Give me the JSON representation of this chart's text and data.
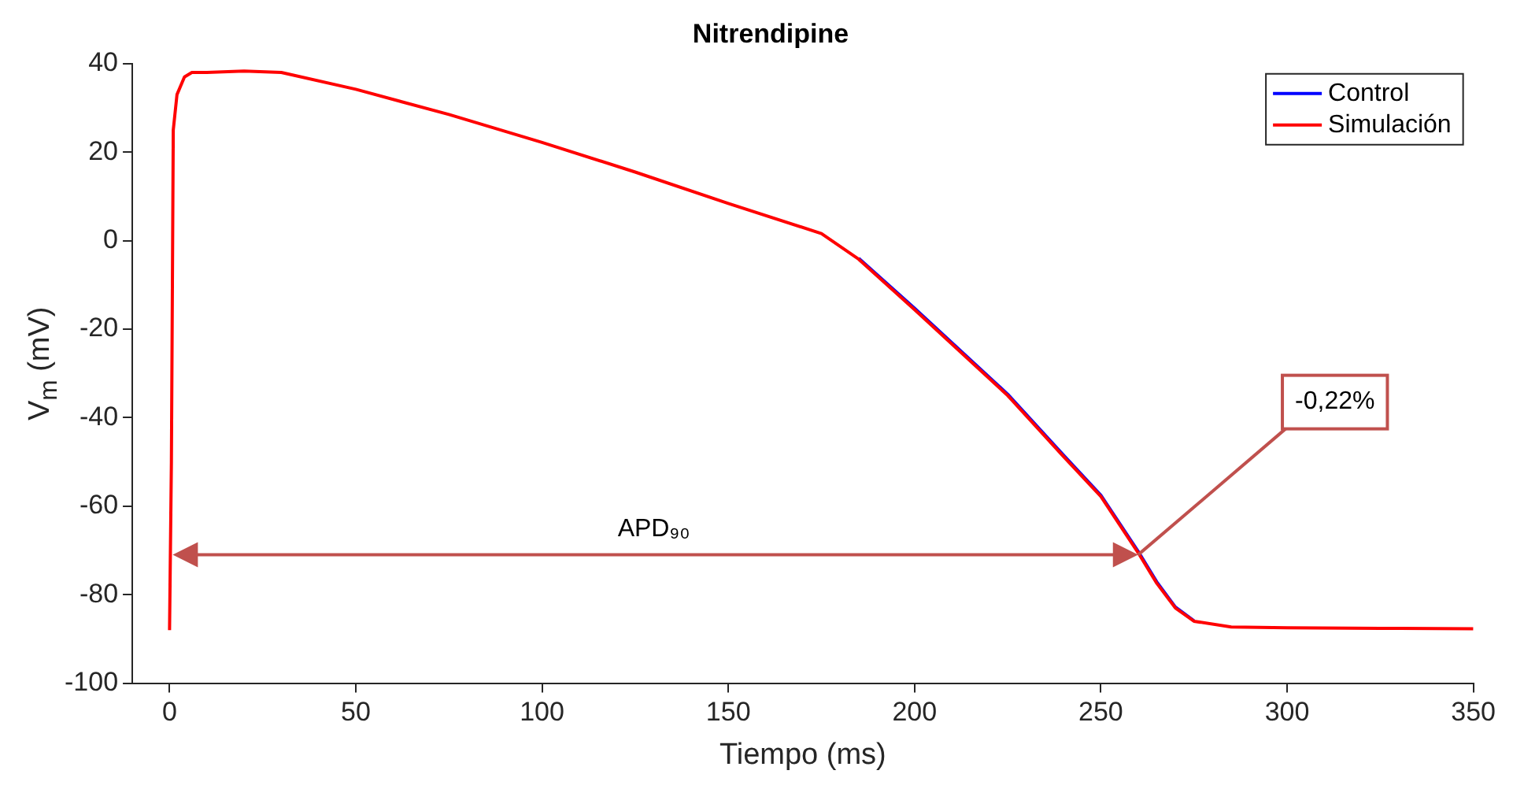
{
  "chart_data": {
    "type": "line",
    "title": "Nitrendipine",
    "xlabel": "Tiempo (ms)",
    "ylabel": "V$_{m}$ (mV)",
    "xlim": [
      -10,
      350
    ],
    "xticks": [
      0,
      50,
      100,
      150,
      200,
      250,
      300,
      350
    ],
    "ylim": [
      -100,
      40
    ],
    "yticks": [
      -100,
      -80,
      -60,
      -40,
      -20,
      0,
      20,
      40
    ],
    "grid": false,
    "legend": "top right",
    "marker": "none",
    "line_style": "solid",
    "series": [
      {
        "name": "Control",
        "color": "#0000ff",
        "x": [
          185,
          200,
          225,
          240,
          250,
          260,
          265,
          270,
          275
        ],
        "values": [
          -4,
          -15.3,
          -34.7,
          -48.5,
          -57.5,
          -70.2,
          -77.1,
          -82.8,
          -85.9
        ]
      },
      {
        "name": "Simulación",
        "color": "#ff0000",
        "x": [
          0,
          0.5,
          1,
          2,
          4,
          6,
          10,
          20,
          30,
          50,
          75,
          100,
          125,
          150,
          175,
          185,
          200,
          225,
          240,
          250,
          260,
          265,
          270,
          275,
          285,
          300,
          325,
          350
        ],
        "values": [
          -88,
          -50,
          25,
          33,
          37,
          38,
          38,
          38.3,
          38,
          34.2,
          28.5,
          22.2,
          15.5,
          8.4,
          1.6,
          -4.2,
          -15.6,
          -35,
          -48.8,
          -57.8,
          -70.5,
          -77.4,
          -83,
          -86,
          -87.3,
          -87.5,
          -87.6,
          -87.7
        ]
      }
    ],
    "annotations": [
      "APD₉₀",
      {
        "text": "-0,22%",
        "x": 260,
        "y": -71
      }
    ]
  }
}
